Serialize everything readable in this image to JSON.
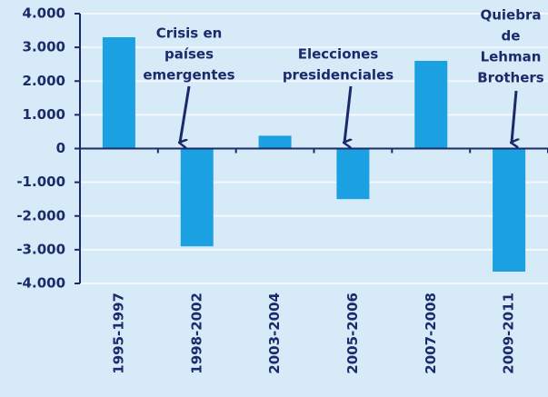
{
  "chart_data": {
    "type": "bar",
    "categories": [
      "1995-1997",
      "1998-2002",
      "2003-2004",
      "2005-2006",
      "2007-2008",
      "2009-2011"
    ],
    "values": [
      3300,
      -2900,
      380,
      -1500,
      2600,
      -3650
    ],
    "color": "#1ba1e2",
    "ylim": [
      -4000,
      4000
    ],
    "yticks": [
      {
        "value": -4000,
        "label": "-4.000"
      },
      {
        "value": -3000,
        "label": "-3.000"
      },
      {
        "value": -2000,
        "label": "-2.000"
      },
      {
        "value": -1000,
        "label": "-1.000"
      },
      0,
      {
        "value": 1000,
        "label": "1.000"
      },
      {
        "value": 2000,
        "label": "2.000"
      },
      {
        "value": 3000,
        "label": "3.000"
      },
      {
        "value": 4000,
        "label": "4.000"
      }
    ],
    "grid": true,
    "annotations": [
      {
        "text": [
          "Crisis en",
          "países",
          "emergentes"
        ]
      },
      {
        "text": [
          "Elecciones",
          "presidenciales"
        ]
      },
      {
        "text": [
          "Quiebra",
          "de",
          "Lehman",
          "Brothers"
        ]
      }
    ]
  }
}
